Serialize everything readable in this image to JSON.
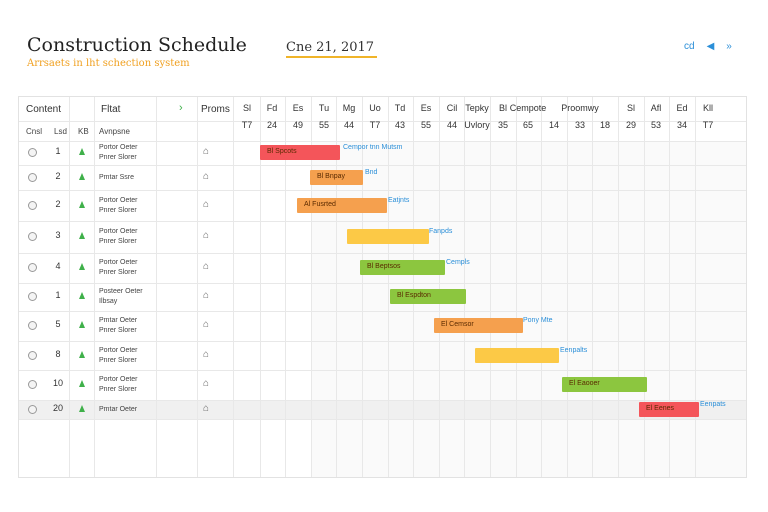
{
  "header": {
    "title": "Construction Schedule",
    "subtitle": "Arrsaets in lht schection system",
    "date": "Cne 21, 2017",
    "icons": [
      {
        "name": "cd-icon",
        "glyph": "cd"
      },
      {
        "name": "send-icon",
        "glyph": "◀"
      },
      {
        "name": "forward-icon",
        "glyph": "»"
      }
    ]
  },
  "grid": {
    "headers": {
      "content": "Content",
      "filter": "Fltat",
      "expand_glyph": "›",
      "proms": "Proms"
    },
    "subheaders": {
      "col1": "Cnsl",
      "col2": "Lsd",
      "col3": "KB",
      "col4": "Avnpsne"
    },
    "days": [
      {
        "top": "Sl",
        "bottom": "T7"
      },
      {
        "top": "Fd",
        "bottom": "24"
      },
      {
        "top": "Es",
        "bottom": "49"
      },
      {
        "top": "Tu",
        "bottom": "55"
      },
      {
        "top": "Mg",
        "bottom": "44"
      },
      {
        "top": "Uo",
        "bottom": "T7"
      },
      {
        "top": "Td",
        "bottom": "43"
      },
      {
        "top": "Es",
        "bottom": "55"
      },
      {
        "top": "Cil",
        "bottom": "44"
      },
      {
        "top": "Tepky",
        "bottom": "Uvlory"
      },
      {
        "top": "Bl",
        "bottom": "35"
      },
      {
        "top": "Cempote",
        "bottom": "65"
      },
      {
        "top": "",
        "bottom": "14"
      },
      {
        "top": "Proomwy",
        "bottom": "33"
      },
      {
        "top": "",
        "bottom": "18"
      },
      {
        "top": "Sl",
        "bottom": "29"
      },
      {
        "top": "Afl",
        "bottom": "53"
      },
      {
        "top": "Ed",
        "bottom": "34"
      },
      {
        "top": "Kll",
        "bottom": "T7"
      }
    ],
    "rows": [
      {
        "num": "1",
        "name1": "Portor Oeter",
        "name2": "Pnrer Slorer",
        "bar": {
          "color": "#f4555a",
          "label": "Bl Spcots",
          "note": "Cempor tnn Mutsm"
        }
      },
      {
        "num": "2",
        "name1": "Pmtar Ssre",
        "name2": "",
        "bar": {
          "color": "#f5a04e",
          "label": "Bl Bnpay",
          "note": "Bnd"
        }
      },
      {
        "num": "2",
        "name1": "Portor Oeter",
        "name2": "Pnrer Slorer",
        "bar": {
          "color": "#f5a04e",
          "label": "Al Fusrted",
          "note": "Eatjnts"
        }
      },
      {
        "num": "3",
        "name1": "Portor Oeter",
        "name2": "Pnrer Slorer",
        "bar": {
          "color": "#fcc946",
          "label": "",
          "note": "Fanpds"
        }
      },
      {
        "num": "4",
        "name1": "Portor Oeter",
        "name2": "Pnrer Slorer",
        "bar": {
          "color": "#8cc63f",
          "label": "Bl Beptsos",
          "note": "Cempls"
        }
      },
      {
        "num": "1",
        "name1": "Posteer Oeter",
        "name2": "Ilbsay",
        "bar": {
          "color": "#8cc63f",
          "label": "Bl Espdton",
          "note": ""
        }
      },
      {
        "num": "5",
        "name1": "Pmtar Oeter",
        "name2": "Pnrer Slorer",
        "bar": {
          "color": "#f5a04e",
          "label": "El Cemsor",
          "note": "Pony Mte"
        }
      },
      {
        "num": "8",
        "name1": "Portor Oeter",
        "name2": "Pnrer Slorer",
        "bar": {
          "color": "#fcc946",
          "label": "",
          "note": "Eenpalts"
        }
      },
      {
        "num": "10",
        "name1": "Portor Oeter",
        "name2": "Pnrer Slorer",
        "bar": {
          "color": "#8cc63f",
          "label": "El Eaooer",
          "note": ""
        }
      },
      {
        "num": "20",
        "name1": "Pmtar Oeter",
        "name2": "",
        "bar": {
          "color": "#f4555a",
          "label": "El Eenes",
          "note": "Eenpats"
        }
      }
    ]
  }
}
